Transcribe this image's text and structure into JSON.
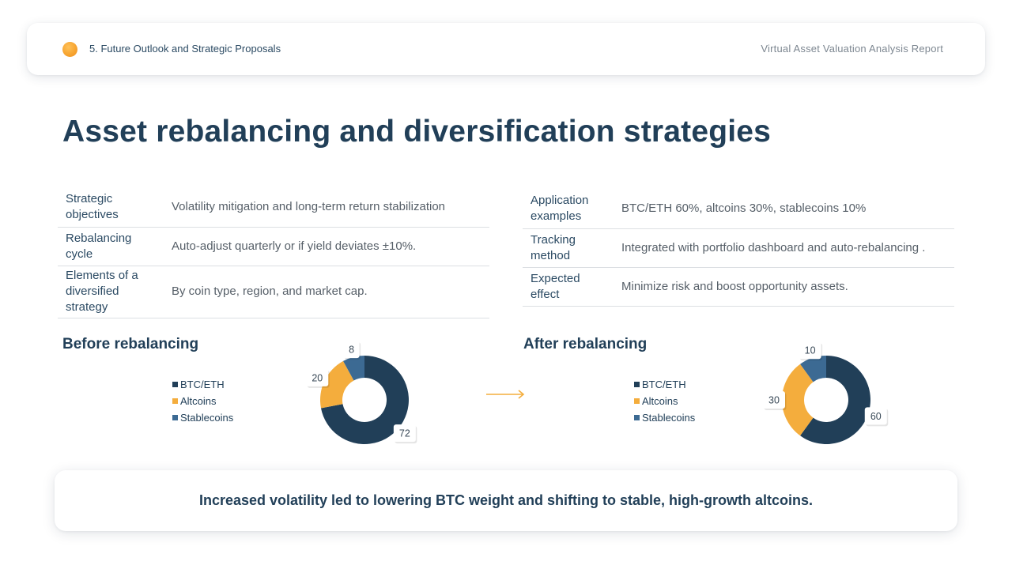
{
  "header": {
    "section": "5. Future Outlook and Strategic Proposals",
    "report": "Virtual Asset Valuation Analysis Report",
    "accent_color": "#f7a531"
  },
  "title": "Asset rebalancing and diversification strategies",
  "left_table": [
    {
      "key": "Strategic objectives",
      "value": "Volatility mitigation and long-term return stabilization"
    },
    {
      "key": "Rebalancing cycle",
      "value": "Auto-adjust quarterly or if yield deviates ±10%."
    },
    {
      "key": "Elements of a diversified strategy",
      "value": "By coin type, region, and market cap."
    }
  ],
  "right_table": [
    {
      "key": "Application examples",
      "value": "BTC/ETH 60%, altcoins 30%, stablecoins 10%"
    },
    {
      "key": "Tracking method",
      "value": "Integrated with portfolio dashboard and auto-rebalancing ."
    },
    {
      "key": "Expected effect",
      "value": "Minimize risk and boost opportunity assets."
    }
  ],
  "chart_data": [
    {
      "type": "pie",
      "title": "Before rebalancing",
      "categories": [
        "BTC/ETH",
        "Altcoins",
        "Stablecoins"
      ],
      "values": [
        72,
        20,
        8
      ],
      "colors": [
        "#213f58",
        "#f4ad3d",
        "#3c6a93"
      ],
      "data_labels": [
        "72",
        "20",
        "8"
      ],
      "legend": "left",
      "donut": true
    },
    {
      "type": "pie",
      "title": "After rebalancing",
      "categories": [
        "BTC/ETH",
        "Altcoins",
        "Stablecoins"
      ],
      "values": [
        60,
        30,
        10
      ],
      "colors": [
        "#213f58",
        "#f4ad3d",
        "#3c6a93"
      ],
      "data_labels": [
        "60",
        "30",
        "10"
      ],
      "legend": "left",
      "donut": true
    }
  ],
  "conclusion": "Increased volatility led to lowering BTC weight and shifting to stable, high-growth altcoins.",
  "arrow_color": "#f4ad3d"
}
